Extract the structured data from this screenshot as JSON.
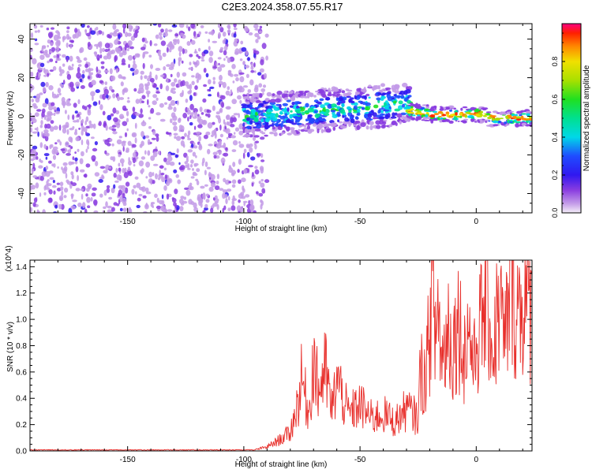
{
  "title": "C2E3.2024.358.07.55.R17",
  "chart_data": [
    {
      "type": "heatmap",
      "xlabel": "Height of straight line (km)",
      "ylabel": "Frequency (Hz)",
      "xlim": [
        -192,
        24
      ],
      "ylim": [
        -50,
        48
      ],
      "xticks": [
        -150,
        -100,
        -50,
        0
      ],
      "yticks": [
        -40,
        -20,
        0,
        20,
        40
      ],
      "colorbar": {
        "label": "Normalized spectral amplitude",
        "range": [
          0,
          1
        ],
        "ticks": [
          0.0,
          0.2,
          0.4,
          0.6,
          0.8
        ]
      },
      "regions": [
        {
          "x_range": [
            -192,
            -90
          ],
          "freq_range": [
            -50,
            48
          ],
          "amplitude": "low (0.05-0.2)"
        },
        {
          "x_range": [
            -100,
            -30
          ],
          "freq_center": 0,
          "freq_halfwidth": 12,
          "amplitude": "0.1-0.5"
        },
        {
          "x_range": [
            -30,
            24
          ],
          "freq_center": 0,
          "freq_halfwidth": 5,
          "amplitude": "0.5-1.0"
        }
      ]
    },
    {
      "type": "line",
      "xlabel": "Height of straight line (km)",
      "ylabel": "SNR (10 * v/v)",
      "y_multiplier": "(x10^4)",
      "xlim": [
        -192,
        24
      ],
      "ylim": [
        0,
        1.45
      ],
      "xticks": [
        -150,
        -100,
        -50,
        0
      ],
      "yticks": [
        0.0,
        0.2,
        0.4,
        0.6,
        0.8,
        1.0,
        1.2,
        1.4
      ],
      "series": [
        {
          "color": "#e8302c",
          "x": [
            -192,
            -150,
            -110,
            -95,
            -90,
            -85,
            -80,
            -77,
            -75,
            -72,
            -70,
            -68,
            -65,
            -62,
            -60,
            -55,
            -50,
            -45,
            -40,
            -35,
            -30,
            -25,
            -24,
            -22,
            -20,
            -19,
            -18,
            -16,
            -15,
            -12,
            -10,
            -8,
            -5,
            -3,
            -1,
            0,
            2,
            5,
            7,
            10,
            12,
            15,
            18,
            20,
            22,
            24
          ],
          "y": [
            0.0,
            0.0,
            0.0,
            0.01,
            0.03,
            0.08,
            0.14,
            0.35,
            0.55,
            0.28,
            0.72,
            0.45,
            0.62,
            0.3,
            0.55,
            0.28,
            0.35,
            0.25,
            0.28,
            0.22,
            0.32,
            0.25,
            0.62,
            0.55,
            0.9,
            1.42,
            0.85,
            1.1,
            0.65,
            0.95,
            0.78,
            1.0,
            0.75,
            0.95,
            0.62,
            0.85,
            0.95,
            1.2,
            0.72,
            1.15,
            0.8,
            1.25,
            1.08,
            1.15,
            1.12,
            1.06
          ]
        }
      ]
    }
  ]
}
